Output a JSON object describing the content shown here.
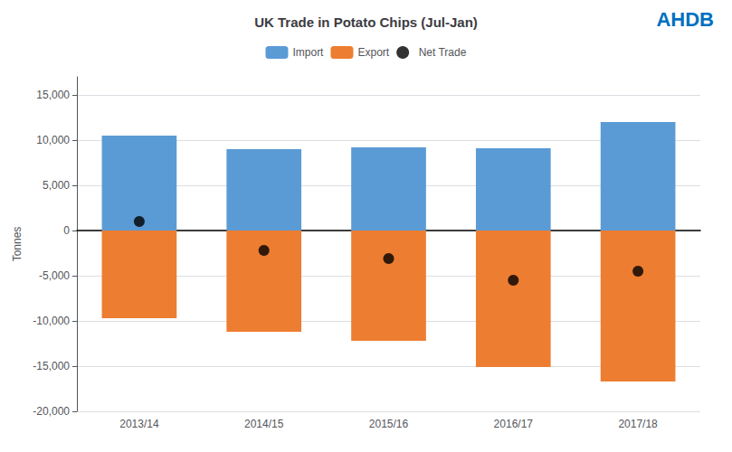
{
  "chart_data": {
    "type": "bar",
    "title": "UK Trade in Potato Chips (Jul-Jan)",
    "ylabel": "Tonnes",
    "categories": [
      "2013/14",
      "2014/15",
      "2015/16",
      "2016/17",
      "2017/18"
    ],
    "series": [
      {
        "name": "Import",
        "type": "bar",
        "color": "#5B9BD5",
        "values": [
          10500,
          9000,
          9200,
          9100,
          12000
        ]
      },
      {
        "name": "Export",
        "type": "bar",
        "color": "#ED7D31",
        "values": [
          -9700,
          -11200,
          -12200,
          -15100,
          -16700
        ]
      },
      {
        "name": "Net Trade",
        "type": "scatter",
        "color": "#000000",
        "marker": "circle",
        "values": [
          1000,
          -2200,
          -3100,
          -5500,
          -4500
        ]
      }
    ],
    "ylim": [
      -20000,
      17000
    ],
    "yticks": [
      {
        "value": -20000,
        "label": "-20,000"
      },
      {
        "value": -15000,
        "label": "-15,000"
      },
      {
        "value": -10000,
        "label": "-10,000"
      },
      {
        "value": -5000,
        "label": "-5,000"
      },
      0,
      {
        "value": 5000,
        "label": "5,000"
      },
      {
        "value": 10000,
        "label": "10,000"
      },
      {
        "value": 15000,
        "label": "15,000"
      }
    ],
    "grid": true,
    "legend": "top",
    "annotations": [
      {
        "text": "AHDB",
        "color": "#0070C0"
      }
    ]
  }
}
